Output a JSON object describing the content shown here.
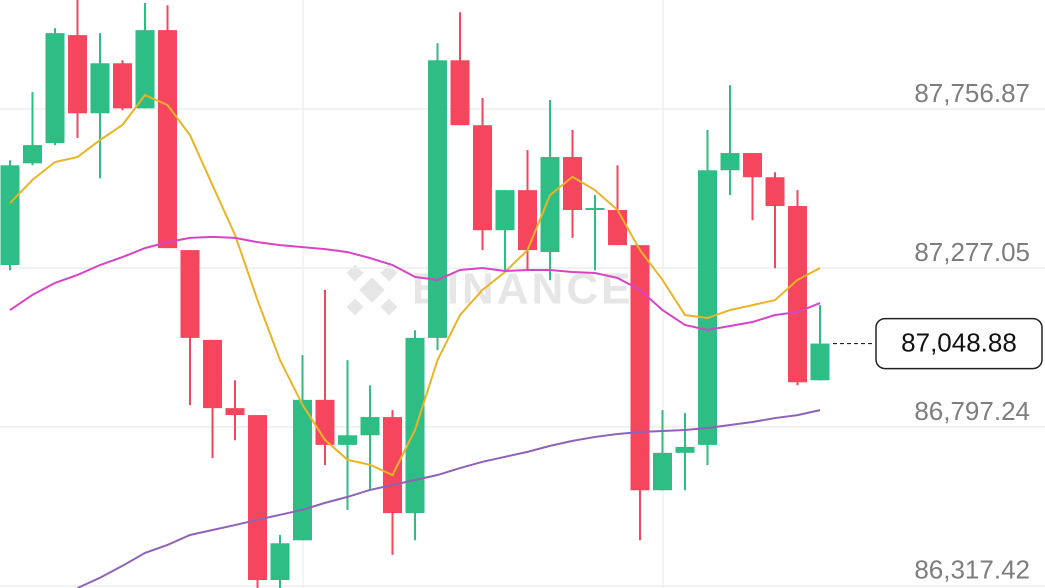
{
  "chart_data": {
    "type": "candlestick",
    "watermark": "BINANCE",
    "ylim": [
      86311,
      88086
    ],
    "yticks": [
      {
        "value": 87756.87,
        "label": "87,756.87"
      },
      {
        "value": 87277.05,
        "label": "87,277.05"
      },
      {
        "value": 86797.24,
        "label": "86,797.24"
      },
      {
        "value": 86317.42,
        "label": "86,317.42"
      }
    ],
    "grid": true,
    "up_color": "#2ebd85",
    "down_color": "#f6465d",
    "current_price": {
      "value": 87048.88,
      "label": "87,048.88"
    },
    "candles": {
      "open": [
        87286,
        87593,
        87654,
        87980,
        87744,
        87895,
        87759,
        87995,
        87331,
        87060,
        86854,
        86833,
        86335,
        86455,
        86879,
        86743,
        86772,
        86827,
        86537,
        87066,
        87904,
        87708,
        87391,
        87512,
        87325,
        87612,
        87452,
        87452,
        87346,
        86606,
        86719,
        86743,
        87572,
        87624,
        87551,
        87464,
        86938
      ],
      "high": [
        87602,
        87808,
        88001,
        88086,
        87986,
        87904,
        88077,
        88070,
        87331,
        87060,
        86938,
        86833,
        86471,
        87014,
        87211,
        86999,
        86923,
        86848,
        87089,
        87956,
        88049,
        87790,
        87512,
        87633,
        87784,
        87694,
        87497,
        87587,
        87346,
        86848,
        86839,
        87694,
        87829,
        87624,
        87566,
        87512,
        87165
      ],
      "low": [
        87270,
        87587,
        87648,
        87669,
        87548,
        87753,
        87759,
        87337,
        86863,
        86703,
        86757,
        86311,
        86311,
        86455,
        86682,
        86547,
        86606,
        86411,
        86455,
        87029,
        87708,
        87331,
        87270,
        87270,
        87240,
        87368,
        87270,
        87346,
        86455,
        86606,
        86606,
        86682,
        87497,
        87421,
        87276,
        86923,
        86938
      ],
      "close": [
        87587,
        87648,
        87986,
        87744,
        87895,
        87759,
        87995,
        87337,
        87066,
        86854,
        86833,
        86335,
        86446,
        86879,
        86743,
        86772,
        86827,
        86537,
        87066,
        87904,
        87708,
        87391,
        87512,
        87331,
        87612,
        87452,
        87458,
        87346,
        86606,
        86719,
        86737,
        87572,
        87624,
        87551,
        87464,
        86932,
        87048.88
      ]
    },
    "lines": [
      {
        "color": "#e9b425",
        "values": [
          87473,
          87543,
          87597,
          87612,
          87663,
          87709,
          87799,
          87769,
          87678,
          87527,
          87377,
          87180,
          86999,
          86864,
          86758,
          86698,
          86683,
          86652,
          86788,
          86999,
          87135,
          87211,
          87265,
          87331,
          87497,
          87552,
          87512,
          87452,
          87331,
          87241,
          87135,
          87126,
          87150,
          87165,
          87180,
          87241,
          87277
        ]
      },
      {
        "color": "#d844c4",
        "values": [
          87150,
          87196,
          87232,
          87256,
          87286,
          87310,
          87337,
          87355,
          87368,
          87371,
          87368,
          87355,
          87346,
          87340,
          87334,
          87325,
          87307,
          87286,
          87250,
          87241,
          87271,
          87277,
          87268,
          87271,
          87271,
          87265,
          87262,
          87247,
          87211,
          87150,
          87105,
          87090,
          87102,
          87114,
          87135,
          87144,
          87171
        ]
      },
      {
        "color": "#8f62b8",
        "values": [
          null,
          null,
          null,
          86311,
          86342,
          86378,
          86417,
          86441,
          86471,
          86486,
          86501,
          86517,
          86532,
          86547,
          86568,
          86586,
          86607,
          86622,
          86637,
          86652,
          86673,
          86692,
          86707,
          86722,
          86740,
          86755,
          86767,
          86776,
          86782,
          86785,
          86788,
          86794,
          86803,
          86812,
          86824,
          86833,
          86848
        ]
      }
    ]
  }
}
